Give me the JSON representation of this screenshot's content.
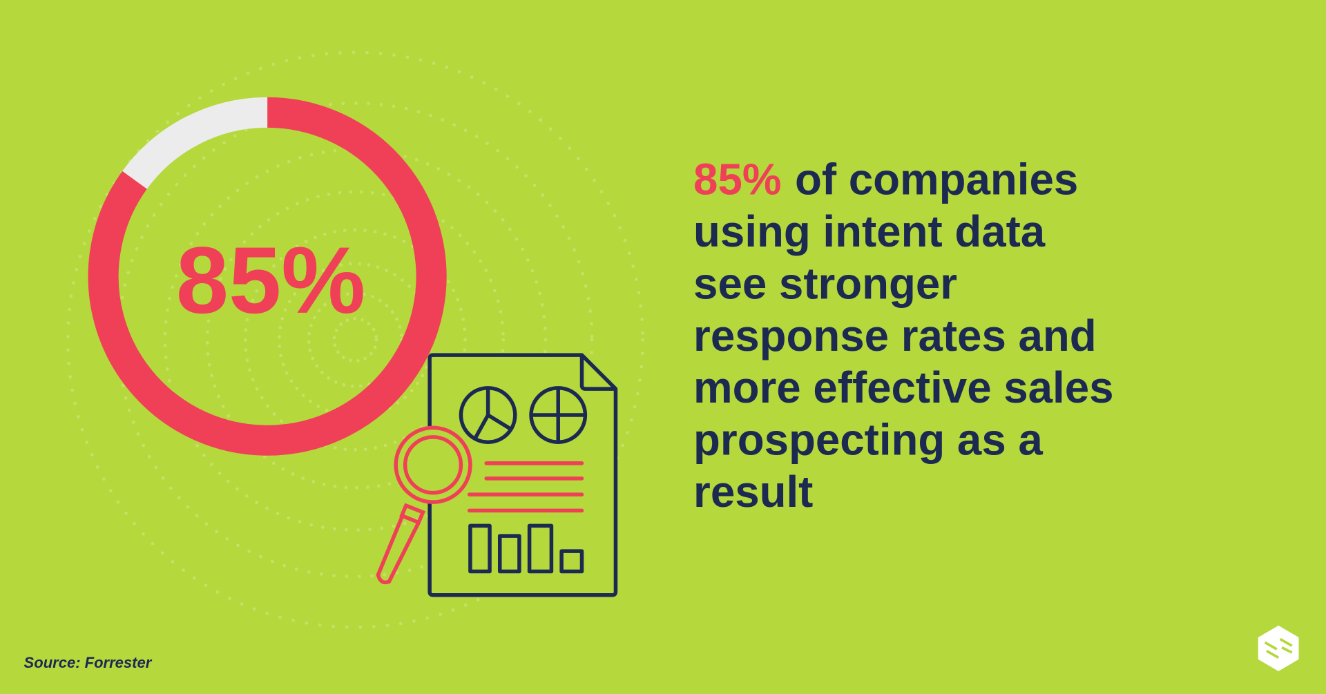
{
  "chart_data": {
    "type": "donut",
    "values": [
      85,
      15
    ],
    "colors": [
      "#ef4058",
      "#ececec"
    ],
    "center_label": "85%"
  },
  "headline": {
    "highlight": "85%",
    "lines": [
      "of companies",
      "using intent data",
      "see stronger",
      "response rates and",
      "more effective sales",
      "prospecting as a",
      "result"
    ]
  },
  "source": "Source: Forrester"
}
